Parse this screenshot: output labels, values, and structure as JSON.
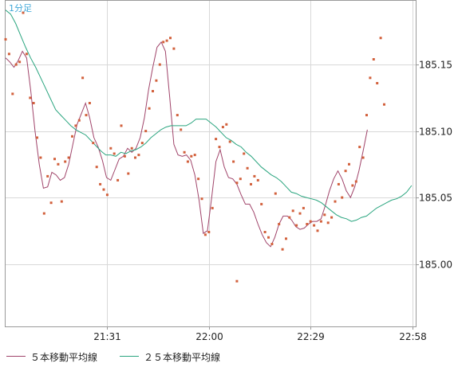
{
  "colors": {
    "background": "#ffffff",
    "plot_border": "#9a9a9a",
    "grid": "#d8d8d8",
    "ma5": "#a0446a",
    "ma25": "#2aa57f",
    "price_dots": "#d2603c",
    "timeframe_label": "#3fa7d8"
  },
  "timeframe_label": "1分足",
  "legend": [
    {
      "label": "５本移動平均線",
      "color": "#a0446a"
    },
    {
      "label": "２５本移動平均線",
      "color": "#2aa57f"
    }
  ],
  "chart_data": {
    "type": "line",
    "title": "",
    "xlabel": "",
    "ylabel": "",
    "x_ticks": [
      "21:31",
      "22:00",
      "22:29",
      "22:58"
    ],
    "x_tick_index": [
      29,
      58,
      87,
      116
    ],
    "y_ticks": [
      "185.15",
      "185.10",
      "185.05",
      "185.00"
    ],
    "y_tick_values": [
      185.15,
      185.1,
      185.05,
      185.0
    ],
    "ylim": [
      184.953,
      185.198
    ],
    "xlim": [
      0,
      117
    ],
    "grid": true,
    "y_axis_side": "right",
    "legend_position": "bottom",
    "series": [
      {
        "name": "５本移動平均線",
        "style": "line",
        "color": "#a0446a",
        "values": [
          185.155,
          185.152,
          185.148,
          185.153,
          185.16,
          185.155,
          185.13,
          185.1,
          185.075,
          185.057,
          185.058,
          185.069,
          185.067,
          185.063,
          185.065,
          185.075,
          185.09,
          185.105,
          185.113,
          185.121,
          185.11,
          185.095,
          185.088,
          185.078,
          185.065,
          185.063,
          185.071,
          185.079,
          185.081,
          185.087,
          185.084,
          185.087,
          185.095,
          185.11,
          185.131,
          185.148,
          185.163,
          185.167,
          185.16,
          185.126,
          185.09,
          185.082,
          185.081,
          185.082,
          185.078,
          185.067,
          185.048,
          185.023,
          185.025,
          185.05,
          185.077,
          185.086,
          185.073,
          185.065,
          185.064,
          185.06,
          185.052,
          185.045,
          185.045,
          185.039,
          185.03,
          185.022,
          185.016,
          185.013,
          185.02,
          185.03,
          185.036,
          185.036,
          185.033,
          185.028,
          185.026,
          185.027,
          185.03,
          185.032,
          185.032,
          185.034,
          185.044,
          185.055,
          185.064,
          185.07,
          185.064,
          185.055,
          185.05,
          185.058,
          185.07,
          185.085,
          185.101
        ],
        "x_start": 0
      },
      {
        "name": "２５本移動平均線",
        "style": "line",
        "color": "#2aa57f",
        "values": [
          185.191,
          185.188,
          185.181,
          185.172,
          185.163,
          185.155,
          185.148,
          185.14,
          185.132,
          185.124,
          185.116,
          185.112,
          185.108,
          185.104,
          185.101,
          185.099,
          185.097,
          185.093,
          185.089,
          185.085,
          185.082,
          185.082,
          185.081,
          185.084,
          185.083,
          185.085,
          185.086,
          185.088,
          185.091,
          185.095,
          185.098,
          185.101,
          185.103,
          185.104,
          185.104,
          185.104,
          185.104,
          185.106,
          185.109,
          185.109,
          185.109,
          185.106,
          185.103,
          185.099,
          185.095,
          185.093,
          185.09,
          185.088,
          185.084,
          185.081,
          185.077,
          185.073,
          185.07,
          185.067,
          185.065,
          185.062,
          185.058,
          185.054,
          185.053,
          185.051,
          185.05,
          185.049,
          185.048,
          185.046,
          185.043,
          185.04,
          185.037,
          185.035,
          185.034,
          185.032,
          185.033,
          185.035,
          185.036,
          185.039,
          185.042,
          185.044,
          185.046,
          185.048,
          185.049,
          185.051,
          185.054,
          185.059
        ],
        "x_start": 0,
        "x_step": 1.43
      },
      {
        "name": "",
        "style": "points",
        "color": "#d2603c",
        "values": [
          185.169,
          185.158,
          185.128,
          185.15,
          185.152,
          185.189,
          185.158,
          185.125,
          185.121,
          185.095,
          185.08,
          185.038,
          185.066,
          185.046,
          185.079,
          185.075,
          185.047,
          185.077,
          185.08,
          185.096,
          185.104,
          185.108,
          185.14,
          185.112,
          185.121,
          185.091,
          185.073,
          185.06,
          185.056,
          185.052,
          185.087,
          185.083,
          185.063,
          185.104,
          185.081,
          185.068,
          185.087,
          185.08,
          185.082,
          185.091,
          185.1,
          185.117,
          185.13,
          185.138,
          185.15,
          185.167,
          185.168,
          185.17,
          185.162,
          185.112,
          185.101,
          185.084,
          185.077,
          185.081,
          185.082,
          185.064,
          185.049,
          185.022,
          185.024,
          185.042,
          185.094,
          185.088,
          185.103,
          185.105,
          185.092,
          185.077,
          185.061,
          185.064,
          185.083,
          185.072,
          185.06,
          185.066,
          185.063,
          185.045,
          185.024,
          185.02,
          185.015,
          185.053,
          185.03,
          185.011,
          185.019,
          185.035,
          185.04,
          185.029,
          185.038,
          185.042,
          185.03,
          185.032,
          185.029,
          185.025,
          185.032,
          185.037,
          185.031,
          185.035,
          185.047,
          185.06,
          185.05,
          185.07,
          185.075,
          185.059,
          185.062,
          185.088,
          185.08,
          185.112,
          185.14,
          185.154,
          185.136,
          185.17,
          185.12
        ],
        "x_start": 0,
        "x_step": 1.0
      }
    ],
    "outlier_points": [
      {
        "x": 66,
        "y": 184.987
      }
    ]
  }
}
